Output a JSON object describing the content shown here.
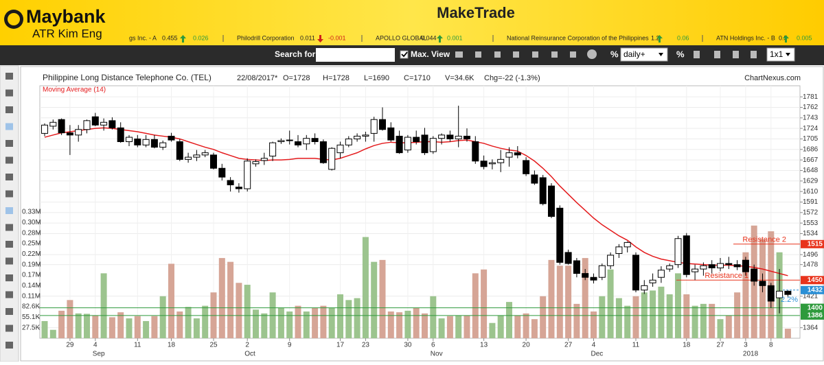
{
  "header": {
    "brand": "Maybank",
    "sub_brand": "ATR Kim Eng",
    "app_title": "MakeTrade"
  },
  "ticker": [
    {
      "name": "gs Inc. - A",
      "price": "0.455",
      "change": "0.026"
    },
    {
      "name": "Philodrill Corporation",
      "price": "0.011",
      "change": "-0.001"
    },
    {
      "name": "APOLLO GLOBAL",
      "price": "0.044",
      "change": "0.001"
    },
    {
      "name": "National Reinsurance Corporation of the Philippines",
      "price": "1.2",
      "change": "0.06"
    },
    {
      "name": "ATN Holdings Inc. - B",
      "price": "0.5",
      "change": "0.005"
    }
  ],
  "toolbar": {
    "search_label": "Search for:",
    "max_view": "Max. View",
    "interval": "daily+",
    "percent": "%",
    "layout": "1x1"
  },
  "chart_data": {
    "type": "candlestick",
    "title": "Philippine Long Distance Telephone Co. (TEL)",
    "info": [
      "22/08/2017*",
      "O=1728",
      "H=1728",
      "L=1690",
      "C=1710",
      "V=34.6K",
      "Chg=-22 (-1.3%)"
    ],
    "source": "ChartNexus.com",
    "categories": [
      null,
      null,
      null,
      "29",
      null,
      null,
      "4",
      null,
      null,
      null,
      null,
      "11",
      null,
      null,
      null,
      "18",
      null,
      null,
      null,
      null,
      "25",
      null,
      null,
      null,
      "2",
      null,
      null,
      null,
      null,
      "9",
      null,
      null,
      null,
      null,
      null,
      "17",
      null,
      null,
      "23",
      null,
      null,
      null,
      null,
      "30",
      null,
      null,
      "6",
      null,
      null,
      null,
      null,
      null,
      "13",
      null,
      null,
      null,
      null,
      "20",
      null,
      null,
      null,
      null,
      "27",
      null,
      null,
      "4",
      null,
      null,
      null,
      null,
      "11",
      null,
      null,
      null,
      null,
      null,
      "18",
      null,
      null,
      null,
      "27",
      null,
      null,
      "3",
      null,
      null,
      "8",
      null,
      null
    ],
    "months": [
      "Sep",
      "Oct",
      "Nov",
      "Dec",
      "2018"
    ],
    "ohlc": [
      [
        1715,
        1733,
        1710,
        1730
      ],
      [
        1728,
        1740,
        1722,
        1735
      ],
      [
        1740,
        1742,
        1712,
        1716
      ],
      [
        1716,
        1730,
        1676,
        1712
      ],
      [
        1712,
        1730,
        1700,
        1722
      ],
      [
        1722,
        1740,
        1715,
        1738
      ],
      [
        1745,
        1752,
        1728,
        1730
      ],
      [
        1730,
        1742,
        1720,
        1735
      ],
      [
        1738,
        1744,
        1722,
        1725
      ],
      [
        1725,
        1735,
        1698,
        1700
      ],
      [
        1700,
        1712,
        1692,
        1708
      ],
      [
        1705,
        1712,
        1690,
        1694
      ],
      [
        1694,
        1712,
        1690,
        1704
      ],
      [
        1704,
        1712,
        1688,
        1690
      ],
      [
        1690,
        1702,
        1685,
        1698
      ],
      [
        1710,
        1716,
        1700,
        1703
      ],
      [
        1700,
        1705,
        1665,
        1668
      ],
      [
        1668,
        1680,
        1662,
        1672
      ],
      [
        1672,
        1685,
        1665,
        1676
      ],
      [
        1676,
        1685,
        1672,
        1680
      ],
      [
        1676,
        1680,
        1650,
        1652
      ],
      [
        1652,
        1660,
        1630,
        1636
      ],
      [
        1630,
        1636,
        1610,
        1622
      ],
      [
        1618,
        1625,
        1608,
        1615
      ],
      [
        1615,
        1670,
        1610,
        1665
      ],
      [
        1660,
        1668,
        1655,
        1664
      ],
      [
        1666,
        1680,
        1658,
        1670
      ],
      [
        1674,
        1700,
        1665,
        1698
      ],
      [
        1700,
        1706,
        1696,
        1702
      ],
      [
        1702,
        1720,
        1695,
        1703
      ],
      [
        1700,
        1712,
        1690,
        1694
      ],
      [
        1696,
        1712,
        1685,
        1706
      ],
      [
        1706,
        1715,
        1695,
        1700
      ],
      [
        1700,
        1704,
        1660,
        1662
      ],
      [
        1650,
        1690,
        1648,
        1688
      ],
      [
        1680,
        1700,
        1670,
        1694
      ],
      [
        1694,
        1710,
        1690,
        1705
      ],
      [
        1705,
        1715,
        1700,
        1710
      ],
      [
        1710,
        1718,
        1700,
        1712
      ],
      [
        1715,
        1745,
        1700,
        1740
      ],
      [
        1740,
        1762,
        1720,
        1722
      ],
      [
        1725,
        1735,
        1700,
        1703
      ],
      [
        1710,
        1720,
        1678,
        1680
      ],
      [
        1685,
        1712,
        1680,
        1708
      ],
      [
        1708,
        1720,
        1695,
        1700
      ],
      [
        1712,
        1725,
        1676,
        1680
      ],
      [
        1682,
        1710,
        1678,
        1706
      ],
      [
        1706,
        1715,
        1695,
        1712
      ],
      [
        1712,
        1720,
        1700,
        1705
      ],
      [
        1705,
        1765,
        1690,
        1710
      ],
      [
        1710,
        1724,
        1700,
        1705
      ],
      [
        1700,
        1710,
        1660,
        1665
      ],
      [
        1665,
        1675,
        1650,
        1655
      ],
      [
        1660,
        1668,
        1650,
        1662
      ],
      [
        1662,
        1685,
        1645,
        1668
      ],
      [
        1672,
        1690,
        1655,
        1680
      ],
      [
        1680,
        1692,
        1670,
        1676
      ],
      [
        1666,
        1672,
        1638,
        1642
      ],
      [
        1640,
        1648,
        1622,
        1625
      ],
      [
        1635,
        1640,
        1585,
        1588
      ],
      [
        1620,
        1625,
        1562,
        1565
      ],
      [
        1580,
        1585,
        1478,
        1482
      ],
      [
        1500,
        1505,
        1478,
        1480
      ],
      [
        1485,
        1490,
        1455,
        1462
      ],
      [
        1462,
        1470,
        1450,
        1455
      ],
      [
        1455,
        1462,
        1444,
        1450
      ],
      [
        1455,
        1480,
        1450,
        1476
      ],
      [
        1476,
        1500,
        1470,
        1495
      ],
      [
        1498,
        1515,
        1490,
        1510
      ],
      [
        1510,
        1520,
        1500,
        1518
      ],
      [
        1495,
        1500,
        1428,
        1432
      ],
      [
        1432,
        1450,
        1425,
        1440
      ],
      [
        1445,
        1462,
        1438,
        1450
      ],
      [
        1455,
        1475,
        1445,
        1468
      ],
      [
        1470,
        1480,
        1465,
        1476
      ],
      [
        1478,
        1530,
        1472,
        1525
      ],
      [
        1530,
        1535,
        1455,
        1460
      ],
      [
        1465,
        1478,
        1450,
        1470
      ],
      [
        1470,
        1482,
        1458,
        1476
      ],
      [
        1478,
        1486,
        1462,
        1472
      ],
      [
        1472,
        1490,
        1466,
        1480
      ],
      [
        1480,
        1492,
        1470,
        1478
      ],
      [
        1478,
        1486,
        1468,
        1474
      ],
      [
        1486,
        1492,
        1458,
        1465
      ],
      [
        1470,
        1478,
        1440,
        1448
      ],
      [
        1448,
        1462,
        1428,
        1440
      ],
      [
        1440,
        1445,
        1400,
        1412
      ],
      [
        1418,
        1470,
        1390,
        1430
      ],
      [
        1430,
        1432,
        1420,
        1424
      ]
    ],
    "volume": [
      45000,
      22000,
      72000,
      100000,
      65000,
      64000,
      60000,
      170000,
      55000,
      68000,
      52000,
      58000,
      45000,
      58000,
      110000,
      195000,
      70000,
      82000,
      52000,
      85000,
      120000,
      210000,
      200000,
      145000,
      140000,
      75000,
      65000,
      120000,
      80000,
      70000,
      85000,
      70000,
      80000,
      85000,
      80000,
      115000,
      100000,
      105000,
      265000,
      200000,
      205000,
      70000,
      68000,
      72000,
      80000,
      65000,
      110000,
      52000,
      58000,
      60000,
      60000,
      170000,
      180000,
      40000,
      60000,
      95000,
      60000,
      65000,
      50000,
      110000,
      205000,
      190000,
      190000,
      90000,
      210000,
      70000,
      110000,
      180000,
      105000,
      85000,
      110000,
      120000,
      125000,
      135000,
      115000,
      170000,
      115000,
      85000,
      90000,
      90000,
      50000,
      60000,
      120000,
      225000,
      295000,
      260000,
      280000,
      225000,
      25000
    ],
    "moving_average": {
      "name": "Moving Average (14)",
      "color": "#e41a1c",
      "values": [
        1708,
        1712,
        1716,
        1718,
        1720,
        1722,
        1724,
        1725,
        1724,
        1722,
        1720,
        1718,
        1715,
        1712,
        1710,
        1708,
        1705,
        1700,
        1695,
        1690,
        1686,
        1680,
        1675,
        1670,
        1668,
        1667,
        1666,
        1667,
        1667,
        1668,
        1670,
        1670,
        1670,
        1668,
        1667,
        1670,
        1675,
        1680,
        1687,
        1693,
        1697,
        1699,
        1698,
        1698,
        1699,
        1700,
        1700,
        1699,
        1700,
        1702,
        1703,
        1700,
        1697,
        1692,
        1688,
        1685,
        1683,
        1675,
        1665,
        1652,
        1637,
        1620,
        1605,
        1590,
        1576,
        1562,
        1550,
        1540,
        1530,
        1522,
        1510,
        1500,
        1493,
        1488,
        1485,
        1482,
        1480,
        1479,
        1478,
        1477,
        1477,
        1477,
        1476,
        1475,
        1473,
        1470,
        1466,
        1462,
        1458
      ]
    },
    "up_color": "#ffffff",
    "down_color": "#000000",
    "volume_up_color": "#9cc48e",
    "volume_down_color": "#d6a596",
    "ylim": [
      1345,
      1801
    ],
    "yticks": [
      1781,
      1762,
      1743,
      1724,
      1705,
      1686,
      1667,
      1648,
      1629,
      1610,
      1591,
      1572,
      1553,
      1534,
      1496,
      1478,
      1421,
      1364
    ],
    "y2lim": [
      0,
      661000
    ],
    "y2ticks": [
      {
        "value": 27500,
        "label": "27.5K"
      },
      {
        "value": 55100,
        "label": "55.1K"
      },
      {
        "value": 82600,
        "label": "82.6K"
      },
      {
        "value": 110200,
        "label": "0.11M"
      },
      {
        "value": 137700,
        "label": "0.14M"
      },
      {
        "value": 165200,
        "label": "0.17M"
      },
      {
        "value": 192800,
        "label": "0.19M"
      },
      {
        "value": 220300,
        "label": "0.22M"
      },
      {
        "value": 247900,
        "label": "0.25M"
      },
      {
        "value": 275400,
        "label": "0.28M"
      },
      {
        "value": 302900,
        "label": "0.30M"
      },
      {
        "value": 330500,
        "label": "0.33M"
      }
    ],
    "grid": true,
    "levels": [
      {
        "name": "Resistance 2",
        "value": 1515,
        "color": "#e8331c"
      },
      {
        "name": "Resistance 1",
        "value": 1450,
        "color": "#e8331c"
      },
      {
        "value": 1400,
        "color": "#2e9a3c"
      },
      {
        "value": 1386,
        "color": "#2e9a3c"
      }
    ],
    "last_price": {
      "value": 1432,
      "color": "#2a8fd6"
    },
    "annotation": "2.2%"
  }
}
